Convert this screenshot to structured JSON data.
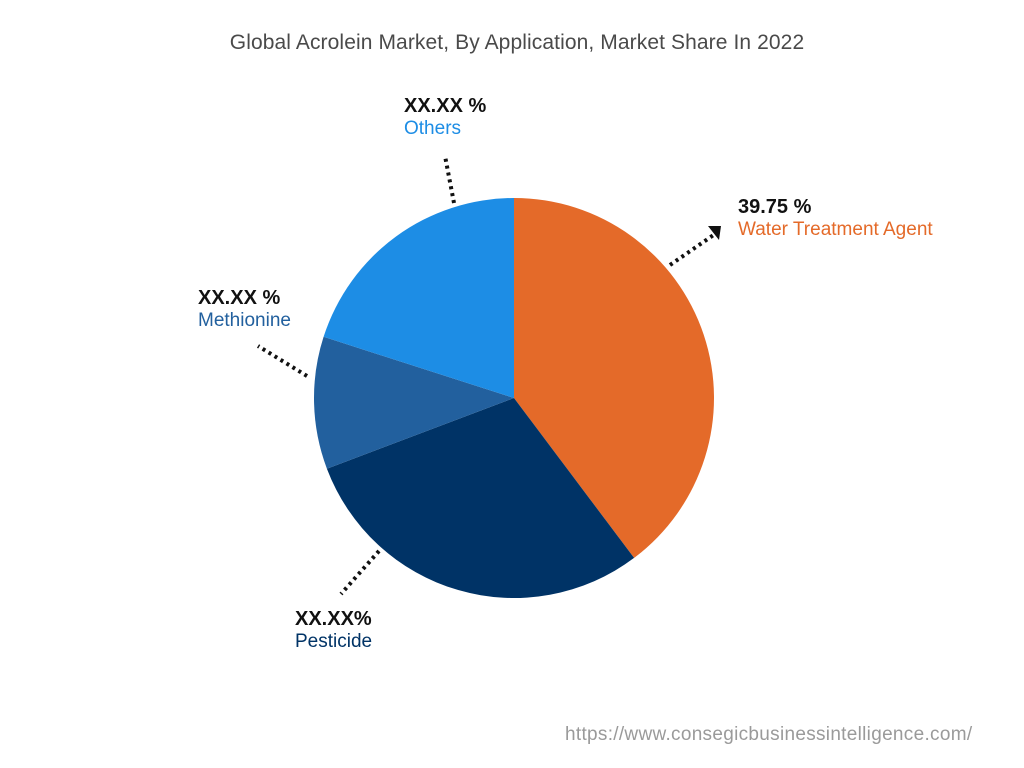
{
  "title": "Global Acrolein Market, By Application, Market Share In 2022",
  "footer_url": "https://www.consegicbusinessintelligence.com/",
  "labels": {
    "water": {
      "value": "39.75 %",
      "name": "Water Treatment Agent",
      "color": "#e46a29"
    },
    "pesticide": {
      "value": "XX.XX%",
      "name": "Pesticide",
      "color": "#003366"
    },
    "methionine": {
      "value": "XX.XX %",
      "name": "Methionine",
      "color": "#22609e"
    },
    "others": {
      "value": "XX.XX %",
      "name": "Others",
      "color": "#1d8de5"
    }
  },
  "chart_data": {
    "type": "pie",
    "title": "Global Acrolein Market, By Application, Market Share In 2022",
    "categories": [
      "Water Treatment Agent",
      "Pesticide",
      "Methionine",
      "Others"
    ],
    "values": [
      39.75,
      29.5,
      10.7,
      20.05
    ],
    "value_labels": [
      "39.75 %",
      "XX.XX%",
      "XX.XX %",
      "XX.XX %"
    ],
    "colors": [
      "#e46a29",
      "#003366",
      "#22609e",
      "#1d8de5"
    ],
    "start_angle": "12 o'clock, clockwise",
    "legend": "none (callout labels with dotted leader lines)",
    "note": "Only Water Treatment Agent value is shown; other values estimated from slice angles"
  }
}
